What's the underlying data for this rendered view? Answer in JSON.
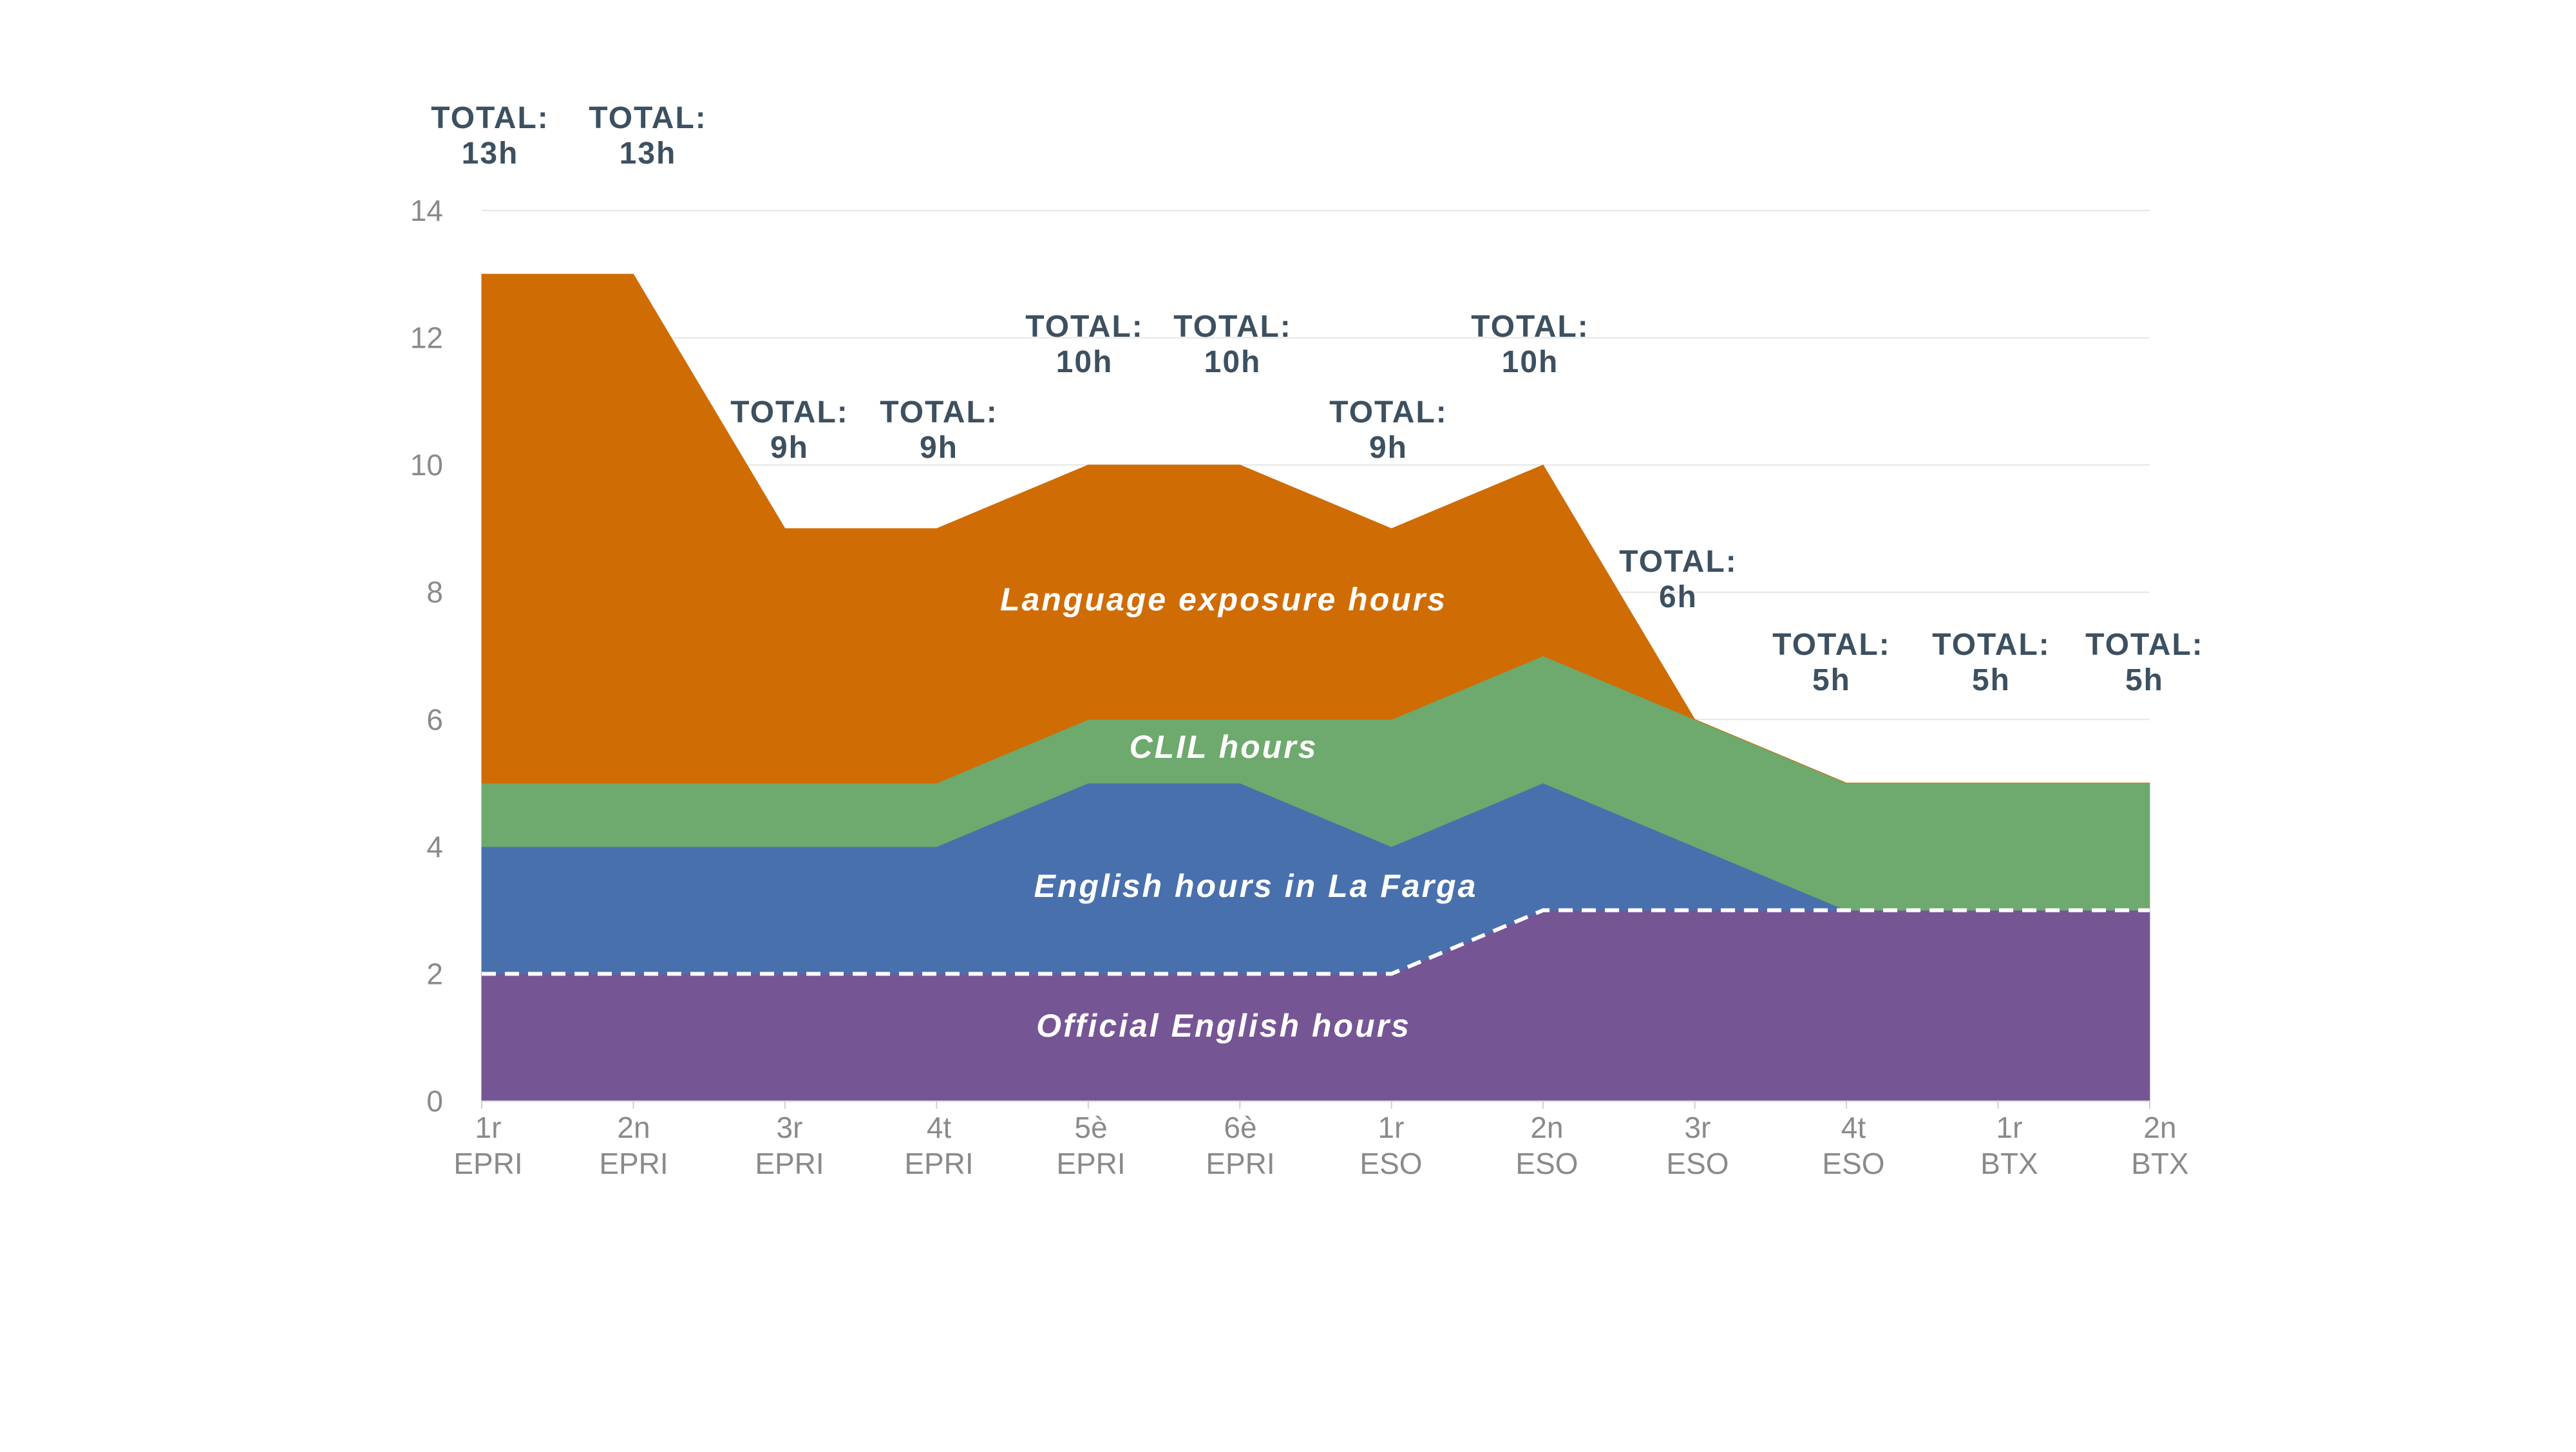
{
  "chart_data": {
    "type": "area",
    "stacked": true,
    "title": "",
    "xlabel": "",
    "ylabel": "",
    "ylim": [
      0,
      14
    ],
    "yticks": [
      0,
      2,
      4,
      6,
      8,
      10,
      12,
      14
    ],
    "grid": true,
    "legend": "none",
    "categories": [
      [
        "1r",
        "EPRI"
      ],
      [
        "2n",
        "EPRI"
      ],
      [
        "3r",
        "EPRI"
      ],
      [
        "4t",
        "EPRI"
      ],
      [
        "5è",
        "EPRI"
      ],
      [
        "6è",
        "EPRI"
      ],
      [
        "1r",
        "ESO"
      ],
      [
        "2n",
        "ESO"
      ],
      [
        "3r",
        "ESO"
      ],
      [
        "4t",
        "ESO"
      ],
      [
        "1r",
        "BTX"
      ],
      [
        "2n",
        "BTX"
      ]
    ],
    "series": [
      {
        "name": "Official English hours",
        "color": "#765595",
        "values": [
          2,
          2,
          2,
          2,
          2,
          2,
          2,
          3,
          3,
          3,
          3,
          3
        ]
      },
      {
        "name": "English hours in La Farga",
        "color": "#4870ad",
        "values": [
          2,
          2,
          2,
          2,
          3,
          3,
          2,
          2,
          1,
          0,
          0,
          0
        ]
      },
      {
        "name": "CLIL hours",
        "color": "#6ea96d",
        "values": [
          1,
          1,
          1,
          1,
          1,
          1,
          2,
          2,
          2,
          2,
          2,
          2
        ]
      },
      {
        "name": "Language exposure hours",
        "color": "#d06c04",
        "values": [
          8,
          8,
          4,
          4,
          4,
          4,
          3,
          3,
          0,
          0,
          0,
          0
        ]
      }
    ],
    "totals": [
      {
        "line1": "TOTAL:",
        "line2": "13h",
        "value": 13
      },
      {
        "line1": "TOTAL:",
        "line2": "13h",
        "value": 13
      },
      {
        "line1": "TOTAL:",
        "line2": "9h",
        "value": 9
      },
      {
        "line1": "TOTAL:",
        "line2": "9h",
        "value": 9
      },
      {
        "line1": "TOTAL:",
        "line2": "10h",
        "value": 10
      },
      {
        "line1": "TOTAL:",
        "line2": "10h",
        "value": 10
      },
      {
        "line1": "TOTAL:",
        "line2": "9h",
        "value": 9
      },
      {
        "line1": "TOTAL:",
        "line2": "10h",
        "value": 10
      },
      {
        "line1": "TOTAL:",
        "line2": "6h",
        "value": 6
      },
      {
        "line1": "TOTAL:",
        "line2": "5h",
        "value": 5
      },
      {
        "line1": "TOTAL:",
        "line2": "5h",
        "value": 5
      },
      {
        "line1": "TOTAL:",
        "line2": "5h",
        "value": 5
      }
    ],
    "dashed_boundary_series": "Official English hours",
    "dashed_color": "#ffffff"
  }
}
